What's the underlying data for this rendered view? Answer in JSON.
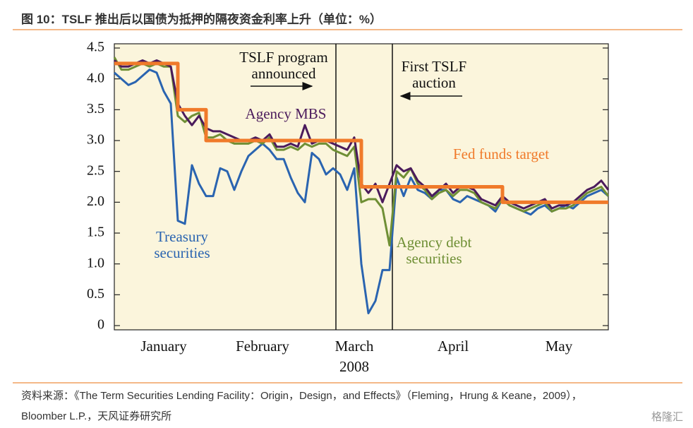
{
  "header": {
    "title": "图 10：TSLF 推出后以国债为抵押的隔夜资金利率上升（单位：%）"
  },
  "chart_data": {
    "type": "line",
    "categories": [
      null,
      null,
      null,
      null,
      null,
      null,
      null,
      "January",
      null,
      null,
      null,
      null,
      null,
      null,
      null,
      null,
      null,
      null,
      null,
      null,
      null,
      "February",
      null,
      null,
      null,
      null,
      null,
      null,
      null,
      null,
      null,
      null,
      null,
      null,
      "March",
      null,
      null,
      null,
      null,
      null,
      null,
      null,
      null,
      null,
      null,
      null,
      null,
      null,
      "April",
      null,
      null,
      null,
      null,
      null,
      null,
      null,
      null,
      null,
      null,
      null,
      null,
      null,
      null,
      "May",
      null,
      null,
      null,
      null,
      null,
      null,
      null
    ],
    "xlabel": "2008",
    "ylim": [
      0,
      4.5
    ],
    "yticks": [
      0,
      0.5,
      {
        "value": 1,
        "label": "1.0"
      },
      1.5,
      {
        "value": 2,
        "label": "2.0"
      },
      2.5,
      {
        "value": 3,
        "label": "3.0"
      },
      3.5,
      {
        "value": 4,
        "label": "4.0"
      },
      4.5
    ],
    "series": [
      {
        "name": "Treasury securities",
        "color": "#2a64b0",
        "values": [
          4.1,
          4.0,
          3.9,
          3.95,
          4.05,
          4.15,
          4.1,
          3.8,
          3.6,
          1.7,
          1.65,
          2.6,
          2.3,
          2.1,
          2.1,
          2.55,
          2.5,
          2.2,
          2.5,
          2.75,
          2.85,
          2.95,
          2.85,
          2.7,
          2.7,
          2.4,
          2.15,
          2.0,
          2.8,
          2.7,
          2.45,
          2.55,
          2.45,
          2.2,
          2.55,
          1.0,
          0.2,
          0.4,
          0.9,
          0.9,
          2.4,
          2.1,
          2.4,
          2.2,
          2.15,
          2.05,
          2.2,
          2.2,
          2.05,
          2.0,
          2.1,
          2.05,
          2.0,
          1.95,
          1.85,
          2.05,
          1.95,
          1.9,
          1.85,
          1.8,
          1.9,
          1.95,
          1.85,
          1.9,
          1.95,
          1.9,
          2.0,
          2.1,
          2.15,
          2.2,
          2.1
        ]
      },
      {
        "name": "Agency debt securities",
        "color": "#6f8f35",
        "values": [
          4.35,
          4.15,
          4.15,
          4.2,
          4.25,
          4.2,
          4.25,
          4.2,
          4.2,
          3.4,
          3.3,
          3.4,
          3.45,
          3.05,
          3.05,
          3.1,
          3.0,
          2.95,
          2.95,
          2.95,
          3.0,
          2.95,
          3.05,
          2.85,
          2.85,
          2.9,
          2.85,
          2.95,
          2.9,
          2.95,
          2.95,
          2.85,
          2.8,
          2.75,
          2.9,
          2.0,
          2.05,
          2.05,
          1.9,
          1.3,
          2.5,
          2.4,
          2.55,
          2.3,
          2.2,
          2.05,
          2.15,
          2.2,
          2.1,
          2.2,
          2.2,
          2.15,
          2.0,
          1.95,
          1.9,
          2.05,
          1.95,
          1.9,
          1.85,
          1.9,
          1.95,
          2.0,
          1.85,
          1.9,
          1.9,
          1.95,
          2.05,
          2.15,
          2.2,
          2.25,
          2.1
        ]
      },
      {
        "name": "Agency MBS",
        "color": "#4b1b5c",
        "values": [
          4.3,
          4.2,
          4.2,
          4.25,
          4.3,
          4.25,
          4.3,
          4.25,
          4.2,
          3.6,
          3.4,
          3.25,
          3.4,
          3.2,
          3.15,
          3.15,
          3.1,
          3.05,
          3.0,
          3.0,
          3.05,
          3.0,
          3.1,
          2.9,
          2.9,
          2.95,
          2.9,
          3.25,
          2.95,
          3.0,
          3.0,
          2.95,
          2.9,
          2.85,
          3.05,
          2.3,
          2.15,
          2.3,
          2.0,
          2.3,
          2.6,
          2.5,
          2.55,
          2.35,
          2.25,
          2.1,
          2.2,
          2.3,
          2.15,
          2.25,
          2.25,
          2.2,
          2.05,
          2.0,
          1.95,
          2.1,
          2.0,
          1.95,
          1.9,
          1.95,
          2.0,
          2.05,
          1.9,
          1.95,
          1.95,
          2.0,
          2.1,
          2.2,
          2.25,
          2.35,
          2.2
        ]
      },
      {
        "name": "Fed funds target",
        "color": "#f07a2a",
        "step": true,
        "values": [
          4.25,
          4.25,
          4.25,
          4.25,
          4.25,
          4.25,
          4.25,
          4.25,
          4.25,
          3.5,
          3.5,
          3.5,
          3.5,
          3.0,
          3.0,
          3.0,
          3.0,
          3.0,
          3.0,
          3.0,
          3.0,
          3.0,
          3.0,
          3.0,
          3.0,
          3.0,
          3.0,
          3.0,
          3.0,
          3.0,
          3.0,
          3.0,
          3.0,
          3.0,
          3.0,
          2.25,
          2.25,
          2.25,
          2.25,
          2.25,
          2.25,
          2.25,
          2.25,
          2.25,
          2.25,
          2.25,
          2.25,
          2.25,
          2.25,
          2.25,
          2.25,
          2.25,
          2.25,
          2.25,
          2.25,
          2.0,
          2.0,
          2.0,
          2.0,
          2.0,
          2.0,
          2.0,
          2.0,
          2.0,
          2.0,
          2.0,
          2.0,
          2.0,
          2.0,
          2.0,
          2.0
        ]
      }
    ],
    "annotations": [
      "TSLF program announced",
      "First TSLF auction"
    ]
  },
  "footer": {
    "lines": [
      "资料来源：《The Term Securities Lending Facility：Origin，Design，and Effects》（Fleming，Hrung & Keane，2009），",
      "Bloomber L.P.，天风证券研究所"
    ],
    "watermark": "格隆汇"
  }
}
